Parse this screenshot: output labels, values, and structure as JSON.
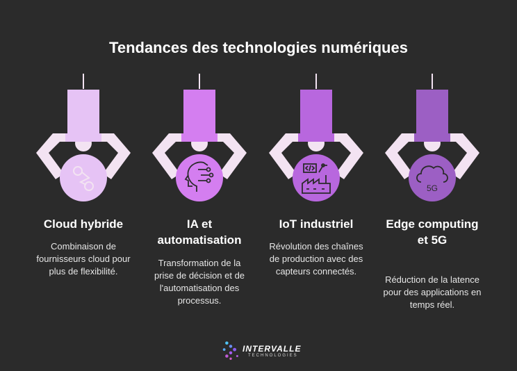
{
  "title": "Tendances des technologies numériques",
  "colors": {
    "background": "#2b2b2b",
    "arm": "#f3e3f2",
    "accents": [
      "#e6c3f5",
      "#d47ef0",
      "#b867de",
      "#9c5fc4"
    ]
  },
  "cards": [
    {
      "title": "Cloud hybride",
      "description": "Combinaison de fournisseurs cloud pour plus de flexibilité.",
      "icon": "cloud-nodes-icon"
    },
    {
      "title": "IA et automatisation",
      "description": "Transformation de la prise de décision et de l'automatisation des processus.",
      "icon": "ai-head-icon"
    },
    {
      "title": "IoT industriel",
      "description": "Révolution des chaînes de production avec des capteurs connectés.",
      "icon": "factory-icon"
    },
    {
      "title": "Edge computing et 5G",
      "description": "Réduction de la latence pour des applications en temps réel.",
      "icon": "cloud-5g-icon",
      "icon_text": "5G"
    }
  ],
  "logo": {
    "name": "INTERVALLE",
    "subtitle": "TECHNOLOGIES",
    "icon": "intervalle-logo-icon"
  }
}
